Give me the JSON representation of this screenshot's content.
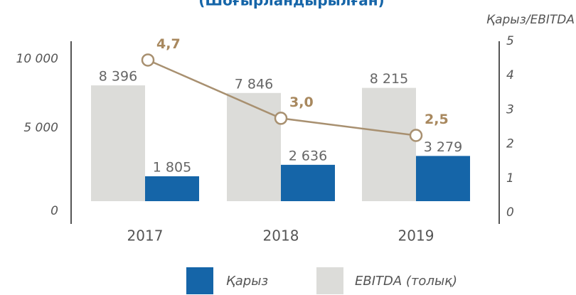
{
  "chart_data": {
    "type": "bar",
    "title": "(Шоғырландырылған)",
    "y2label": "Қарыз/EBITDA",
    "categories": [
      "2017",
      "2018",
      "2019"
    ],
    "series": [
      {
        "name": "Қарыз",
        "type": "bar",
        "color": "#1565a8",
        "values": [
          1805,
          2636,
          3279
        ],
        "value_labels": [
          "1 805",
          "2 636",
          "3 279"
        ]
      },
      {
        "name": "EBITDA (толық)",
        "type": "bar",
        "color": "#dcdcd9",
        "values": [
          8396,
          7846,
          8215
        ],
        "value_labels": [
          "8 396",
          "7 846",
          "8 215"
        ]
      },
      {
        "type": "line",
        "axis": "y2",
        "color": "#a89070",
        "values": [
          4.7,
          3.0,
          2.5
        ],
        "value_labels": [
          "4,7",
          "3,0",
          "2,5"
        ]
      }
    ],
    "ylim": [
      0,
      10000
    ],
    "yticks": [
      0,
      {
        "value": 5000,
        "label": "5 000"
      },
      {
        "value": 10000,
        "label": "10 000"
      }
    ],
    "y2lim": [
      0,
      5
    ],
    "y2ticks": [
      0,
      1,
      2,
      3,
      4,
      5
    ]
  }
}
